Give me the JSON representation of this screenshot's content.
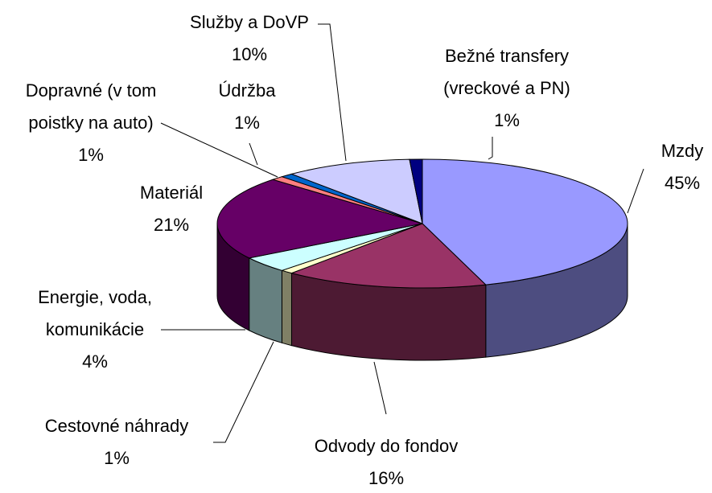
{
  "chart_data": {
    "type": "pie3d",
    "categories": [
      "Mzdy",
      "Odvody do fondov",
      "Cestovné náhrady",
      "Energie, voda, komunikácie",
      "Materiál",
      "Dopravné (v tom poistky na auto)",
      "Údržba",
      "Služby a DoVP",
      "Bežné transfery (vreckové a PN)"
    ],
    "values": [
      45,
      16,
      1,
      4,
      21,
      1,
      1,
      10,
      1
    ],
    "value_labels": [
      "45%",
      "16%",
      "1%",
      "4%",
      "21%",
      "1%",
      "1%",
      "10%",
      "1%"
    ],
    "colors": [
      "#9999ff",
      "#993366",
      "#ffffcc",
      "#ccffff",
      "#660066",
      "#ff8080",
      "#0066cc",
      "#ccccff",
      "#000080"
    ]
  }
}
